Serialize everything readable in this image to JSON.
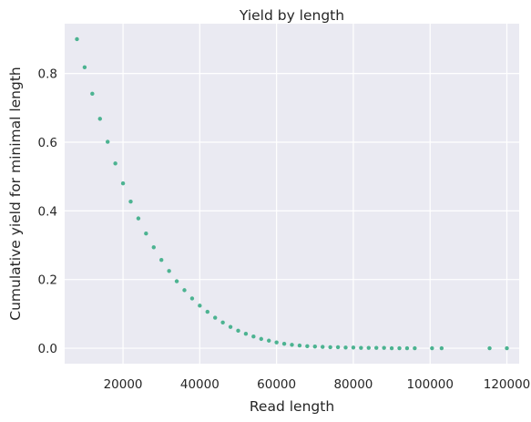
{
  "chart_data": {
    "type": "scatter",
    "title": "Yield by length",
    "xlabel": "Read length",
    "ylabel": "Cumulative yield for minimal length",
    "xlim": [
      4800,
      123200
    ],
    "ylim": [
      -0.045,
      0.945
    ],
    "xticks": [
      20000,
      40000,
      60000,
      80000,
      100000,
      120000
    ],
    "yticks": [
      0.0,
      0.2,
      0.4,
      0.6,
      0.8
    ],
    "xtick_labels": [
      "20000",
      "40000",
      "60000",
      "80000",
      "100000",
      "120000"
    ],
    "ytick_labels": [
      "0.0",
      "0.2",
      "0.4",
      "0.6",
      "0.8"
    ],
    "grid": true,
    "background_color": "#eaeaf2",
    "grid_color": "#ffffff",
    "point_color": "#4cb391",
    "series": [
      {
        "points": [
          [
            8000,
            0.9
          ],
          [
            10000,
            0.818
          ],
          [
            12000,
            0.741
          ],
          [
            14000,
            0.668
          ],
          [
            16000,
            0.601
          ],
          [
            18000,
            0.538
          ],
          [
            20000,
            0.48
          ],
          [
            22000,
            0.427
          ],
          [
            24000,
            0.378
          ],
          [
            26000,
            0.334
          ],
          [
            28000,
            0.294
          ],
          [
            30000,
            0.257
          ],
          [
            32000,
            0.225
          ],
          [
            34000,
            0.195
          ],
          [
            36000,
            0.169
          ],
          [
            38000,
            0.145
          ],
          [
            40000,
            0.124
          ],
          [
            42000,
            0.106
          ],
          [
            44000,
            0.089
          ],
          [
            46000,
            0.075
          ],
          [
            48000,
            0.062
          ],
          [
            50000,
            0.051
          ],
          [
            52000,
            0.042
          ],
          [
            54000,
            0.034
          ],
          [
            56000,
            0.027
          ],
          [
            58000,
            0.022
          ],
          [
            60000,
            0.017
          ],
          [
            62000,
            0.013
          ],
          [
            64000,
            0.01
          ],
          [
            66000,
            0.008
          ],
          [
            68000,
            0.006
          ],
          [
            70000,
            0.005
          ],
          [
            72000,
            0.004
          ],
          [
            74000,
            0.003
          ],
          [
            76000,
            0.003
          ],
          [
            78000,
            0.002
          ],
          [
            80000,
            0.002
          ],
          [
            82000,
            0.001
          ],
          [
            84000,
            0.001
          ],
          [
            86000,
            0.001
          ],
          [
            88000,
            0.001
          ],
          [
            90000,
            0.0
          ],
          [
            92000,
            0.0
          ],
          [
            94000,
            0.0
          ],
          [
            96000,
            0.0
          ],
          [
            100500,
            0.0
          ],
          [
            103000,
            0.0
          ],
          [
            115500,
            0.0
          ],
          [
            120000,
            0.0
          ]
        ]
      }
    ]
  }
}
